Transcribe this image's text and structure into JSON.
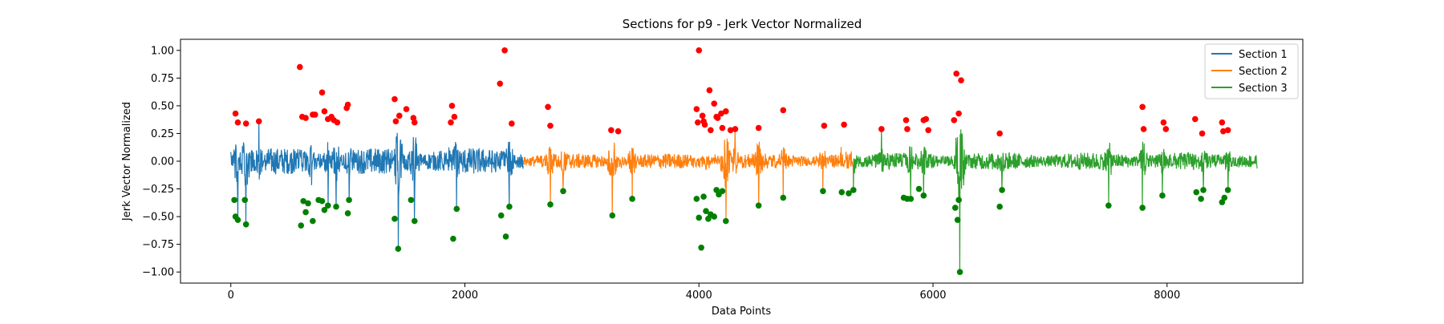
{
  "chart_data": {
    "type": "line",
    "title": "Sections for p9 - Jerk Vector Normalized",
    "xlabel": "Data Points",
    "ylabel": "Jerk Vector Normalized",
    "xlim": [
      -430,
      9160
    ],
    "ylim": [
      -1.1,
      1.1
    ],
    "xticks": [
      0,
      2000,
      4000,
      6000,
      8000
    ],
    "xtick_labels": [
      "0",
      "2000",
      "4000",
      "6000",
      "8000"
    ],
    "yticks": [
      1.0,
      0.75,
      0.5,
      0.25,
      0.0,
      -0.25,
      -0.5,
      -0.75,
      -1.0
    ],
    "ytick_labels": [
      "1.00",
      "0.75",
      "0.50",
      "0.25",
      "0.00",
      "−0.25",
      "−0.50",
      "−0.75",
      "−1.00"
    ],
    "grid": false,
    "legend_position": "top-right",
    "series": [
      {
        "name": "Section 1",
        "color": "#1f77b4",
        "x_range": [
          0,
          2500
        ],
        "base_amplitude": 0.12
      },
      {
        "name": "Section 2",
        "color": "#ff7f0e",
        "x_range": [
          2500,
          5320
        ],
        "base_amplitude": 0.07
      },
      {
        "name": "Section 3",
        "color": "#2ca02c",
        "x_range": [
          5320,
          8770
        ],
        "base_amplitude": 0.08
      }
    ],
    "peaks": {
      "color": "#ff0000",
      "points": [
        [
          40,
          0.43
        ],
        [
          60,
          0.35
        ],
        [
          130,
          0.34
        ],
        [
          240,
          0.36
        ],
        [
          590,
          0.85
        ],
        [
          610,
          0.4
        ],
        [
          640,
          0.39
        ],
        [
          700,
          0.42
        ],
        [
          720,
          0.42
        ],
        [
          780,
          0.62
        ],
        [
          800,
          0.45
        ],
        [
          830,
          0.38
        ],
        [
          860,
          0.4
        ],
        [
          880,
          0.37
        ],
        [
          910,
          0.35
        ],
        [
          990,
          0.48
        ],
        [
          1000,
          0.51
        ],
        [
          1400,
          0.56
        ],
        [
          1410,
          0.36
        ],
        [
          1440,
          0.41
        ],
        [
          1500,
          0.47
        ],
        [
          1560,
          0.39
        ],
        [
          1570,
          0.35
        ],
        [
          1880,
          0.35
        ],
        [
          1890,
          0.5
        ],
        [
          1910,
          0.4
        ],
        [
          2300,
          0.7
        ],
        [
          2340,
          1.0
        ],
        [
          2400,
          0.34
        ],
        [
          2710,
          0.49
        ],
        [
          2730,
          0.32
        ],
        [
          3250,
          0.28
        ],
        [
          3310,
          0.27
        ],
        [
          3980,
          0.47
        ],
        [
          3990,
          0.35
        ],
        [
          4000,
          1.0
        ],
        [
          4030,
          0.41
        ],
        [
          4040,
          0.36
        ],
        [
          4050,
          0.33
        ],
        [
          4090,
          0.64
        ],
        [
          4100,
          0.28
        ],
        [
          4130,
          0.52
        ],
        [
          4150,
          0.4
        ],
        [
          4160,
          0.39
        ],
        [
          4190,
          0.43
        ],
        [
          4200,
          0.3
        ],
        [
          4230,
          0.45
        ],
        [
          4270,
          0.28
        ],
        [
          4310,
          0.29
        ],
        [
          4510,
          0.3
        ],
        [
          4720,
          0.46
        ],
        [
          5070,
          0.32
        ],
        [
          5240,
          0.33
        ],
        [
          5560,
          0.29
        ],
        [
          5770,
          0.37
        ],
        [
          5780,
          0.29
        ],
        [
          5920,
          0.37
        ],
        [
          5940,
          0.38
        ],
        [
          5960,
          0.28
        ],
        [
          6180,
          0.37
        ],
        [
          6200,
          0.79
        ],
        [
          6220,
          0.43
        ],
        [
          6240,
          0.73
        ],
        [
          6570,
          0.25
        ],
        [
          7790,
          0.49
        ],
        [
          7800,
          0.29
        ],
        [
          7970,
          0.35
        ],
        [
          7990,
          0.29
        ],
        [
          8240,
          0.38
        ],
        [
          8300,
          0.25
        ],
        [
          8470,
          0.35
        ],
        [
          8480,
          0.27
        ],
        [
          8520,
          0.28
        ]
      ]
    },
    "troughs": {
      "color": "#008000",
      "points": [
        [
          30,
          -0.35
        ],
        [
          40,
          -0.5
        ],
        [
          60,
          -0.53
        ],
        [
          120,
          -0.35
        ],
        [
          130,
          -0.57
        ],
        [
          600,
          -0.58
        ],
        [
          620,
          -0.36
        ],
        [
          640,
          -0.46
        ],
        [
          660,
          -0.38
        ],
        [
          700,
          -0.54
        ],
        [
          750,
          -0.35
        ],
        [
          780,
          -0.36
        ],
        [
          800,
          -0.44
        ],
        [
          830,
          -0.4
        ],
        [
          900,
          -0.41
        ],
        [
          1000,
          -0.47
        ],
        [
          1010,
          -0.35
        ],
        [
          1400,
          -0.52
        ],
        [
          1430,
          -0.79
        ],
        [
          1540,
          -0.35
        ],
        [
          1570,
          -0.54
        ],
        [
          1900,
          -0.7
        ],
        [
          1930,
          -0.43
        ],
        [
          2310,
          -0.49
        ],
        [
          2350,
          -0.68
        ],
        [
          2380,
          -0.41
        ],
        [
          2730,
          -0.39
        ],
        [
          2840,
          -0.27
        ],
        [
          3260,
          -0.49
        ],
        [
          3430,
          -0.34
        ],
        [
          3980,
          -0.34
        ],
        [
          4000,
          -0.51
        ],
        [
          4020,
          -0.78
        ],
        [
          4040,
          -0.32
        ],
        [
          4060,
          -0.45
        ],
        [
          4080,
          -0.52
        ],
        [
          4100,
          -0.48
        ],
        [
          4130,
          -0.5
        ],
        [
          4150,
          -0.26
        ],
        [
          4170,
          -0.3
        ],
        [
          4200,
          -0.27
        ],
        [
          4230,
          -0.54
        ],
        [
          4510,
          -0.4
        ],
        [
          4720,
          -0.33
        ],
        [
          5060,
          -0.27
        ],
        [
          5220,
          -0.28
        ],
        [
          5280,
          -0.29
        ],
        [
          5320,
          -0.26
        ],
        [
          5750,
          -0.33
        ],
        [
          5780,
          -0.34
        ],
        [
          5810,
          -0.34
        ],
        [
          5880,
          -0.25
        ],
        [
          5920,
          -0.31
        ],
        [
          6190,
          -0.42
        ],
        [
          6210,
          -0.53
        ],
        [
          6220,
          -0.35
        ],
        [
          6230,
          -1.0
        ],
        [
          6570,
          -0.41
        ],
        [
          6590,
          -0.26
        ],
        [
          7500,
          -0.4
        ],
        [
          7790,
          -0.42
        ],
        [
          7960,
          -0.31
        ],
        [
          8250,
          -0.28
        ],
        [
          8290,
          -0.34
        ],
        [
          8310,
          -0.26
        ],
        [
          8470,
          -0.37
        ],
        [
          8490,
          -0.33
        ],
        [
          8520,
          -0.26
        ]
      ]
    }
  }
}
